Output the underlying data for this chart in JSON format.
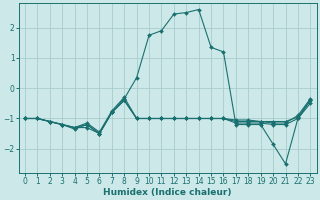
{
  "xlabel": "Humidex (Indice chaleur)",
  "background_color": "#cce8e8",
  "grid_color": "#aacccc",
  "line_color": "#1a7070",
  "xlim": [
    -0.5,
    23.5
  ],
  "ylim": [
    -2.8,
    2.8
  ],
  "yticks": [
    -2,
    -1,
    0,
    1,
    2
  ],
  "xticks": [
    0,
    1,
    2,
    3,
    4,
    5,
    6,
    7,
    8,
    9,
    10,
    11,
    12,
    13,
    14,
    15,
    16,
    17,
    18,
    19,
    20,
    21,
    22,
    23
  ],
  "main_line": {
    "x": [
      0,
      1,
      2,
      3,
      4,
      5,
      6,
      7,
      8,
      9,
      10,
      11,
      12,
      13,
      14,
      15,
      16,
      17,
      18,
      19,
      20,
      21,
      22,
      23
    ],
    "y": [
      -1.0,
      -1.0,
      -1.1,
      -1.2,
      -1.3,
      -1.3,
      -1.5,
      -0.8,
      -0.35,
      0.35,
      1.75,
      1.9,
      2.45,
      2.5,
      2.6,
      1.35,
      1.2,
      -1.2,
      -1.2,
      -1.2,
      -1.85,
      -2.5,
      -1.0,
      -0.5
    ]
  },
  "sec_lines": [
    {
      "x": [
        0,
        1,
        2,
        3,
        4,
        5,
        6,
        7,
        8,
        9,
        10,
        11,
        12,
        13,
        14,
        15,
        16,
        17,
        18,
        19,
        20,
        21,
        22,
        23
      ],
      "y": [
        -1.0,
        -1.0,
        -1.1,
        -1.2,
        -1.3,
        -1.2,
        -1.5,
        -0.8,
        -0.4,
        -1.0,
        -1.0,
        -1.0,
        -1.0,
        -1.0,
        -1.0,
        -1.0,
        -1.0,
        -1.1,
        -1.1,
        -1.1,
        -1.1,
        -1.1,
        -0.95,
        -0.4
      ]
    },
    {
      "x": [
        0,
        1,
        2,
        3,
        4,
        5,
        6,
        7,
        8,
        9,
        10,
        11,
        12,
        13,
        14,
        15,
        16,
        17,
        18,
        19,
        20,
        21,
        22,
        23
      ],
      "y": [
        -1.0,
        -1.0,
        -1.1,
        -1.2,
        -1.35,
        -1.2,
        -1.5,
        -0.8,
        -0.4,
        -1.0,
        -1.0,
        -1.0,
        -1.0,
        -1.0,
        -1.0,
        -1.0,
        -1.0,
        -1.15,
        -1.15,
        -1.15,
        -1.2,
        -1.2,
        -1.0,
        -0.4
      ]
    },
    {
      "x": [
        0,
        1,
        2,
        3,
        4,
        5,
        6,
        7,
        8,
        9,
        10,
        11,
        12,
        13,
        14,
        15,
        16,
        17,
        18,
        19,
        20,
        21,
        22,
        23
      ],
      "y": [
        -1.0,
        -1.0,
        -1.1,
        -1.2,
        -1.3,
        -1.15,
        -1.45,
        -0.75,
        -0.3,
        -1.0,
        -1.0,
        -1.0,
        -1.0,
        -1.0,
        -1.0,
        -1.0,
        -1.0,
        -1.05,
        -1.05,
        -1.1,
        -1.15,
        -1.15,
        -0.9,
        -0.35
      ]
    }
  ]
}
